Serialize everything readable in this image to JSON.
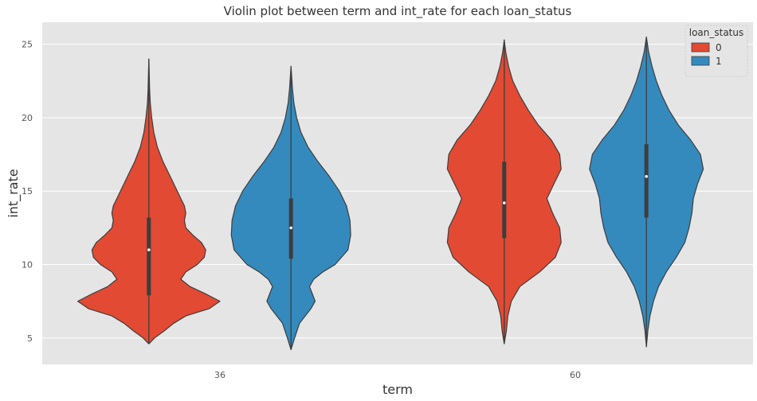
{
  "chart_data": {
    "type": "violin",
    "title": "Violin plot between term and int_rate for each loan_status",
    "xlabel": "term",
    "ylabel": "int_rate",
    "categories": [
      "36",
      "60"
    ],
    "ylim": [
      3.2,
      26.5
    ],
    "yticks": [
      5,
      10,
      15,
      20,
      25
    ],
    "grid": true,
    "background": "#e5e5e5",
    "legend": {
      "title": "loan_status",
      "position": "top-right",
      "entries": [
        {
          "label": "0",
          "color": "#e24a33"
        },
        {
          "label": "1",
          "color": "#348abd"
        }
      ]
    },
    "series": [
      {
        "name": "0",
        "color": "#e24a33",
        "violins": [
          {
            "category": "36",
            "min": 4.6,
            "max": 24.0,
            "q1": 7.9,
            "median": 11.0,
            "q3": 13.2,
            "profile": [
              [
                4.6,
                0
              ],
              [
                5.0,
                0.08
              ],
              [
                5.5,
                0.22
              ],
              [
                6.0,
                0.35
              ],
              [
                6.5,
                0.52
              ],
              [
                7.0,
                0.85
              ],
              [
                7.5,
                1.0
              ],
              [
                8.0,
                0.8
              ],
              [
                8.5,
                0.58
              ],
              [
                9.0,
                0.45
              ],
              [
                9.5,
                0.52
              ],
              [
                10.0,
                0.68
              ],
              [
                10.5,
                0.78
              ],
              [
                11.0,
                0.8
              ],
              [
                11.5,
                0.74
              ],
              [
                12.0,
                0.62
              ],
              [
                12.5,
                0.52
              ],
              [
                13.0,
                0.5
              ],
              [
                13.5,
                0.52
              ],
              [
                14.0,
                0.5
              ],
              [
                14.5,
                0.45
              ],
              [
                15.0,
                0.4
              ],
              [
                16.0,
                0.3
              ],
              [
                17.0,
                0.2
              ],
              [
                18.0,
                0.12
              ],
              [
                19.0,
                0.07
              ],
              [
                20.0,
                0.04
              ],
              [
                21.0,
                0.02
              ],
              [
                22.0,
                0.01
              ],
              [
                23.0,
                0.006
              ],
              [
                24.0,
                0
              ]
            ]
          },
          {
            "category": "60",
            "min": 4.6,
            "max": 25.3,
            "q1": 11.8,
            "median": 14.2,
            "q3": 17.0,
            "profile": [
              [
                4.6,
                0
              ],
              [
                5.5,
                0.03
              ],
              [
                6.5,
                0.05
              ],
              [
                7.5,
                0.1
              ],
              [
                8.5,
                0.22
              ],
              [
                9.5,
                0.5
              ],
              [
                10.5,
                0.72
              ],
              [
                11.5,
                0.8
              ],
              [
                12.5,
                0.78
              ],
              [
                13.5,
                0.68
              ],
              [
                14.5,
                0.6
              ],
              [
                15.5,
                0.7
              ],
              [
                16.5,
                0.8
              ],
              [
                17.5,
                0.78
              ],
              [
                18.5,
                0.66
              ],
              [
                19.5,
                0.48
              ],
              [
                20.5,
                0.34
              ],
              [
                21.5,
                0.22
              ],
              [
                22.5,
                0.12
              ],
              [
                23.5,
                0.06
              ],
              [
                24.5,
                0.02
              ],
              [
                25.3,
                0
              ]
            ]
          }
        ]
      },
      {
        "name": "1",
        "color": "#348abd",
        "violins": [
          {
            "category": "36",
            "min": 4.2,
            "max": 23.5,
            "q1": 10.4,
            "median": 12.5,
            "q3": 14.5,
            "profile": [
              [
                4.2,
                0
              ],
              [
                5.0,
                0.05
              ],
              [
                6.0,
                0.12
              ],
              [
                7.0,
                0.28
              ],
              [
                7.5,
                0.34
              ],
              [
                8.0,
                0.3
              ],
              [
                8.5,
                0.26
              ],
              [
                9.0,
                0.32
              ],
              [
                9.5,
                0.45
              ],
              [
                10.0,
                0.62
              ],
              [
                11.0,
                0.8
              ],
              [
                12.0,
                0.84
              ],
              [
                13.0,
                0.83
              ],
              [
                14.0,
                0.78
              ],
              [
                15.0,
                0.68
              ],
              [
                16.0,
                0.54
              ],
              [
                17.0,
                0.38
              ],
              [
                18.0,
                0.24
              ],
              [
                19.0,
                0.14
              ],
              [
                20.0,
                0.08
              ],
              [
                21.0,
                0.04
              ],
              [
                22.0,
                0.02
              ],
              [
                23.5,
                0
              ]
            ]
          },
          {
            "category": "60",
            "min": 4.4,
            "max": 25.5,
            "q1": 13.2,
            "median": 16.0,
            "q3": 18.2,
            "profile": [
              [
                4.4,
                0
              ],
              [
                5.5,
                0.02
              ],
              [
                6.5,
                0.05
              ],
              [
                7.5,
                0.1
              ],
              [
                8.5,
                0.17
              ],
              [
                9.5,
                0.28
              ],
              [
                10.5,
                0.42
              ],
              [
                11.5,
                0.54
              ],
              [
                12.5,
                0.6
              ],
              [
                13.5,
                0.64
              ],
              [
                14.5,
                0.66
              ],
              [
                15.5,
                0.72
              ],
              [
                16.5,
                0.8
              ],
              [
                17.5,
                0.76
              ],
              [
                18.5,
                0.62
              ],
              [
                19.5,
                0.45
              ],
              [
                20.5,
                0.32
              ],
              [
                21.5,
                0.22
              ],
              [
                22.5,
                0.14
              ],
              [
                23.5,
                0.08
              ],
              [
                24.5,
                0.03
              ],
              [
                25.5,
                0
              ]
            ]
          }
        ]
      }
    ]
  }
}
